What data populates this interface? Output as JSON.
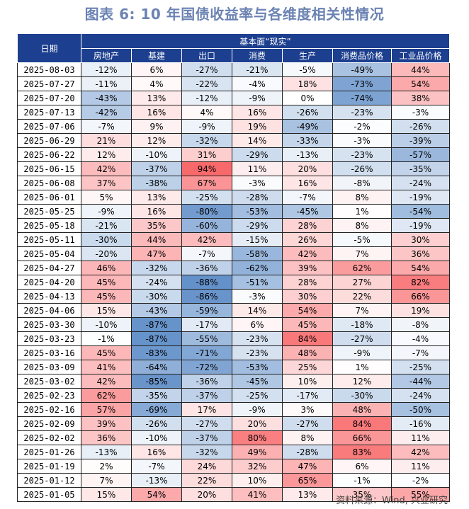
{
  "title": "图表 6:  10 年国债收益率与各维度相关性情况",
  "header": {
    "date_col": "日期",
    "group_label": "基本面“现实”",
    "columns": [
      "房地产",
      "基建",
      "出口",
      "消费",
      "生产",
      "消费品价格",
      "工业品价格"
    ]
  },
  "rows": [
    {
      "date": "2025-08-03",
      "values": [
        "-12%",
        "6%",
        "-27%",
        "-21%",
        "-5%",
        "-49%",
        "44%"
      ]
    },
    {
      "date": "2025-07-27",
      "values": [
        "-11%",
        "4%",
        "-22%",
        "-4%",
        "18%",
        "-73%",
        "54%"
      ]
    },
    {
      "date": "2025-07-20",
      "values": [
        "-43%",
        "13%",
        "-12%",
        "-9%",
        "0%",
        "-74%",
        "38%"
      ]
    },
    {
      "date": "2025-07-13",
      "values": [
        "-42%",
        "16%",
        "4%",
        "16%",
        "-26%",
        "-23%",
        "-3%"
      ]
    },
    {
      "date": "2025-07-06",
      "values": [
        "-7%",
        "9%",
        "-9%",
        "19%",
        "-49%",
        "-2%",
        "-26%"
      ]
    },
    {
      "date": "2025-06-29",
      "values": [
        "21%",
        "12%",
        "-32%",
        "14%",
        "-33%",
        "-3%",
        "-39%"
      ]
    },
    {
      "date": "2025-06-22",
      "values": [
        "12%",
        "-10%",
        "31%",
        "-29%",
        "-13%",
        "-23%",
        "-57%"
      ]
    },
    {
      "date": "2025-06-15",
      "values": [
        "42%",
        "-37%",
        "94%",
        "11%",
        "20%",
        "-26%",
        "-35%"
      ]
    },
    {
      "date": "2025-06-08",
      "values": [
        "37%",
        "-38%",
        "67%",
        "-3%",
        "16%",
        "-8%",
        "-24%"
      ]
    },
    {
      "date": "2025-06-01",
      "values": [
        "5%",
        "13%",
        "-25%",
        "-28%",
        "-7%",
        "8%",
        "-19%"
      ]
    },
    {
      "date": "2025-05-25",
      "values": [
        "-9%",
        "16%",
        "-80%",
        "-53%",
        "-45%",
        "1%",
        "-54%"
      ]
    },
    {
      "date": "2025-05-18",
      "values": [
        "-21%",
        "35%",
        "-60%",
        "-29%",
        "28%",
        "8%",
        "-19%"
      ]
    },
    {
      "date": "2025-05-11",
      "values": [
        "-30%",
        "44%",
        "42%",
        "-15%",
        "26%",
        "-5%",
        "30%"
      ]
    },
    {
      "date": "2025-05-04",
      "values": [
        "-20%",
        "47%",
        "-7%",
        "-58%",
        "42%",
        "7%",
        "36%"
      ]
    },
    {
      "date": "2025-04-27",
      "values": [
        "46%",
        "-32%",
        "-36%",
        "-62%",
        "39%",
        "62%",
        "54%"
      ]
    },
    {
      "date": "2025-04-20",
      "values": [
        "45%",
        "-24%",
        "-88%",
        "-51%",
        "28%",
        "27%",
        "82%"
      ]
    },
    {
      "date": "2025-04-13",
      "values": [
        "45%",
        "-30%",
        "-86%",
        "-3%",
        "30%",
        "22%",
        "66%"
      ]
    },
    {
      "date": "2025-04-06",
      "values": [
        "15%",
        "-43%",
        "-59%",
        "14%",
        "54%",
        "7%",
        "19%"
      ]
    },
    {
      "date": "2025-03-30",
      "values": [
        "-10%",
        "-87%",
        "-17%",
        "6%",
        "45%",
        "-18%",
        "-8%"
      ]
    },
    {
      "date": "2025-03-23",
      "values": [
        "-1%",
        "-87%",
        "-55%",
        "-23%",
        "84%",
        "-27%",
        "-4%"
      ]
    },
    {
      "date": "2025-03-16",
      "values": [
        "45%",
        "-83%",
        "-71%",
        "-23%",
        "48%",
        "-9%",
        "-7%"
      ]
    },
    {
      "date": "2025-03-09",
      "values": [
        "41%",
        "-64%",
        "-72%",
        "-53%",
        "25%",
        "1%",
        "-25%"
      ]
    },
    {
      "date": "2025-03-02",
      "values": [
        "42%",
        "-85%",
        "-36%",
        "-45%",
        "10%",
        "12%",
        "-44%"
      ]
    },
    {
      "date": "2025-02-23",
      "values": [
        "62%",
        "-35%",
        "-37%",
        "-25%",
        "-17%",
        "-30%",
        "-24%"
      ]
    },
    {
      "date": "2025-02-16",
      "values": [
        "57%",
        "-69%",
        "17%",
        "-9%",
        "3%",
        "48%",
        "-50%"
      ]
    },
    {
      "date": "2025-02-09",
      "values": [
        "39%",
        "-26%",
        "-27%",
        "20%",
        "-27%",
        "84%",
        "-16%"
      ]
    },
    {
      "date": "2025-02-02",
      "values": [
        "36%",
        "-10%",
        "-37%",
        "80%",
        "8%",
        "66%",
        "11%"
      ]
    },
    {
      "date": "2025-01-26",
      "values": [
        "-13%",
        "16%",
        "-32%",
        "49%",
        "-28%",
        "83%",
        "42%"
      ]
    },
    {
      "date": "2025-01-19",
      "values": [
        "2%",
        "-7%",
        "24%",
        "32%",
        "47%",
        "6%",
        "11%"
      ]
    },
    {
      "date": "2025-01-12",
      "values": [
        "7%",
        "-13%",
        "22%",
        "10%",
        "65%",
        "-1%",
        "-2%"
      ]
    },
    {
      "date": "2025-01-05",
      "values": [
        "15%",
        "54%",
        "20%",
        "41%",
        "13%",
        "35%",
        "55%"
      ]
    }
  ],
  "colors": {
    "header_bg": "#1d3f8f",
    "title": "#6b83b3",
    "positive_max": "#f8696b",
    "negative_max": "#5a8ac6",
    "neutral": "#ffffff"
  },
  "source": "资料来源：Wind, 兴业研究"
}
